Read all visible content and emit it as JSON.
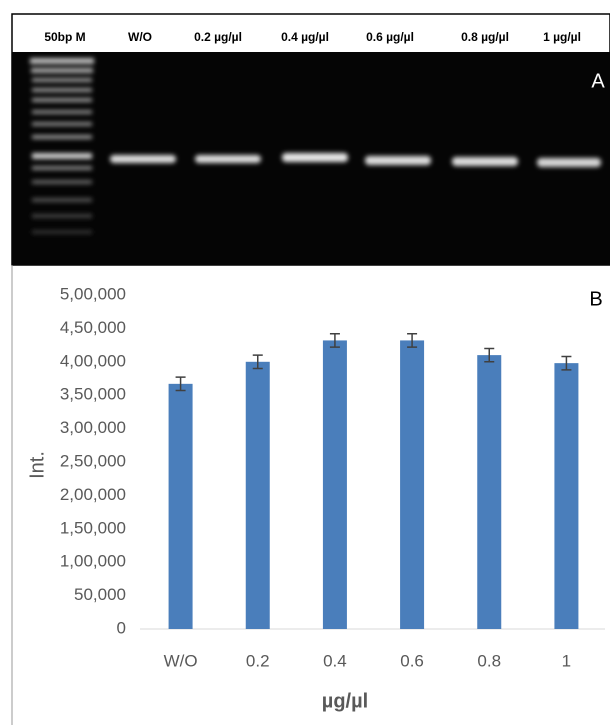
{
  "gel": {
    "lanes": [
      "50bp M",
      "W/O",
      "0.2 µg/µl",
      "0.4 µg/µl",
      "0.6 µg/µl",
      "0.8 µg/µl",
      "1 µg/µl"
    ],
    "panel_label": "A"
  },
  "chart_data": {
    "type": "bar",
    "panel_label": "B",
    "xlabel": "µg/µl",
    "ylabel": "Int.",
    "categories": [
      "W/O",
      "0.2",
      "0.4",
      "0.6",
      "0.8",
      "1"
    ],
    "values": [
      367000,
      400000,
      432000,
      432000,
      410000,
      398000
    ],
    "errors": [
      10000,
      10000,
      10000,
      10000,
      10000,
      10000
    ],
    "color": "#4a7ebb",
    "grid": false,
    "ylim": [
      0,
      500000
    ],
    "yticks": [
      0,
      {
        "value": 50000,
        "label": "50,000"
      },
      {
        "value": 100000,
        "label": "1,00,000"
      },
      {
        "value": 150000,
        "label": "1,50,000"
      },
      {
        "value": 200000,
        "label": "2,00,000"
      },
      {
        "value": 250000,
        "label": "2,50,000"
      },
      {
        "value": 300000,
        "label": "3,00,000"
      },
      {
        "value": 350000,
        "label": "3,50,000"
      },
      {
        "value": 400000,
        "label": "4,00,000"
      },
      {
        "value": 450000,
        "label": "4,50,000"
      },
      {
        "value": 500000,
        "label": "5,00,000"
      }
    ]
  }
}
